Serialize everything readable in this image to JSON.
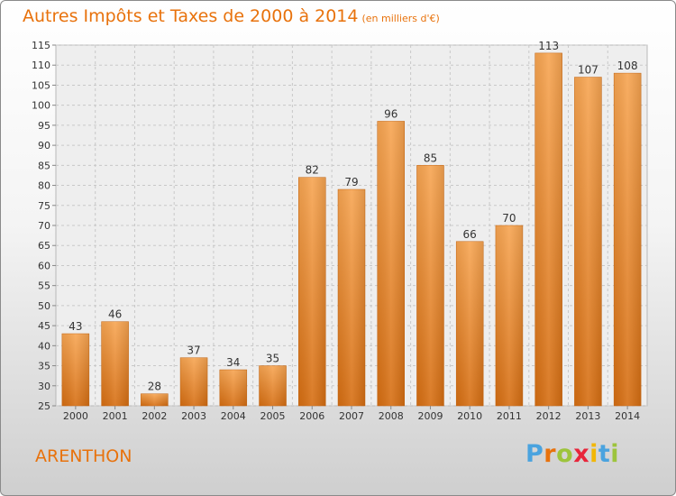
{
  "title": "Autres Impôts et Taxes de 2000 à 2014",
  "title_unit": "(en milliers d'€)",
  "commune": "ARENTHON",
  "logo": {
    "letters": [
      "P",
      "r",
      "o",
      "x",
      "i",
      "t",
      "i"
    ],
    "colors": [
      "#4aa3df",
      "#e8720c",
      "#9dc43c",
      "#e8253a",
      "#f2b705",
      "#4aa3df",
      "#9dc43c"
    ]
  },
  "chart_data": {
    "type": "bar",
    "categories": [
      "2000",
      "2001",
      "2002",
      "2003",
      "2004",
      "2005",
      "2006",
      "2007",
      "2008",
      "2009",
      "2010",
      "2011",
      "2012",
      "2013",
      "2014"
    ],
    "values": [
      43,
      46,
      28,
      37,
      34,
      35,
      82,
      79,
      96,
      85,
      66,
      70,
      113,
      107,
      108
    ],
    "ylim": [
      25,
      115
    ],
    "yticks": [
      25,
      30,
      35,
      40,
      45,
      50,
      55,
      60,
      65,
      70,
      75,
      80,
      85,
      90,
      95,
      100,
      105,
      110,
      115
    ],
    "grid": true,
    "bar_color": "#f0902c"
  }
}
